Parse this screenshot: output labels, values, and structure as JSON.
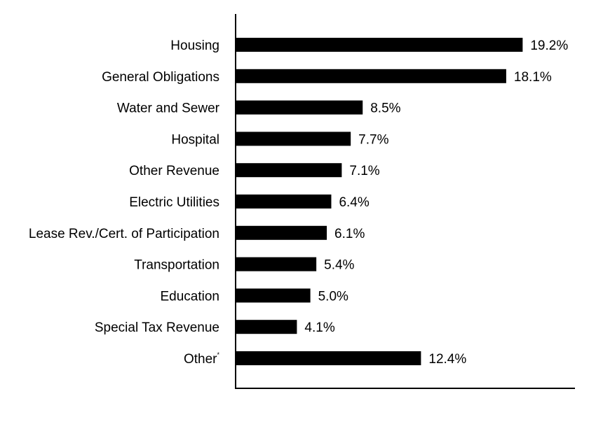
{
  "chart_data": {
    "type": "bar",
    "orientation": "horizontal",
    "categories": [
      "Housing",
      "General Obligations",
      "Water and Sewer",
      "Hospital",
      "Other Revenue",
      "Electric Utilities",
      "Lease Rev./Cert. of Participation",
      "Transportation",
      "Education",
      "Special Tax Revenue",
      "Other"
    ],
    "category_superscripts": [
      "",
      "",
      "",
      "",
      "",
      "",
      "",
      "",
      "",
      "",
      "*"
    ],
    "values": [
      19.2,
      18.1,
      8.5,
      7.7,
      7.1,
      6.4,
      6.1,
      5.4,
      5.0,
      4.1,
      12.4
    ],
    "value_labels": [
      "19.2%",
      "18.1%",
      "8.5%",
      "7.7%",
      "7.1%",
      "6.4%",
      "6.1%",
      "5.4%",
      "5.0%",
      "4.1%",
      "12.4%"
    ],
    "bar_color": "#000000",
    "xlim": [
      0,
      22.7
    ],
    "grid": false,
    "legend": "none"
  }
}
